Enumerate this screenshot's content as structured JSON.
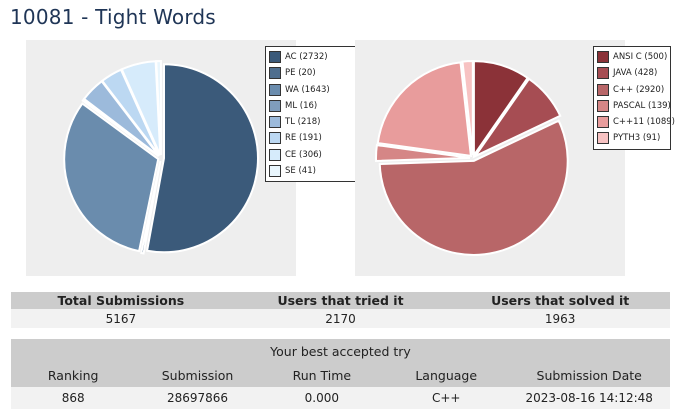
{
  "title": "10081 - Tight Words",
  "chart_data": [
    {
      "type": "pie",
      "legend_position": "top-right",
      "slices": [
        {
          "label": "AC (2732)",
          "value": 2732,
          "color": "#3b5a7a"
        },
        {
          "label": "PE (20)",
          "value": 20,
          "color": "#4f6e8e"
        },
        {
          "label": "WA (1643)",
          "value": 1643,
          "color": "#6a8cad"
        },
        {
          "label": "ML (16)",
          "value": 16,
          "color": "#7f9dbc"
        },
        {
          "label": "TL (218)",
          "value": 218,
          "color": "#9cbadb"
        },
        {
          "label": "RE (191)",
          "value": 191,
          "color": "#bcd8f2"
        },
        {
          "label": "CE (306)",
          "value": 306,
          "color": "#d6ebfb"
        },
        {
          "label": "SE (41)",
          "value": 41,
          "color": "#e9f6fd"
        }
      ]
    },
    {
      "type": "pie",
      "legend_position": "top-right",
      "slices": [
        {
          "label": "ANSI C (500)",
          "value": 500,
          "color": "#8b3238"
        },
        {
          "label": "JAVA (428)",
          "value": 428,
          "color": "#a64d53"
        },
        {
          "label": "C++ (2920)",
          "value": 2920,
          "color": "#b86668"
        },
        {
          "label": "PASCAL (139)",
          "value": 139,
          "color": "#d58686"
        },
        {
          "label": "C++11 (1089)",
          "value": 1089,
          "color": "#e89c9c"
        },
        {
          "label": "PYTH3 (91)",
          "value": 91,
          "color": "#f7c2c2"
        }
      ]
    }
  ],
  "stats": {
    "headers": [
      "Total Submissions",
      "Users that tried it",
      "Users that solved it"
    ],
    "values": [
      "5167",
      "2170",
      "1963"
    ]
  },
  "best": {
    "caption": "Your best accepted try",
    "headers": [
      "Ranking",
      "Submission",
      "Run Time",
      "Language",
      "Submission Date"
    ],
    "values": [
      "868",
      "28697866",
      "0.000",
      "C++",
      "2023-08-16 14:12:48"
    ]
  }
}
